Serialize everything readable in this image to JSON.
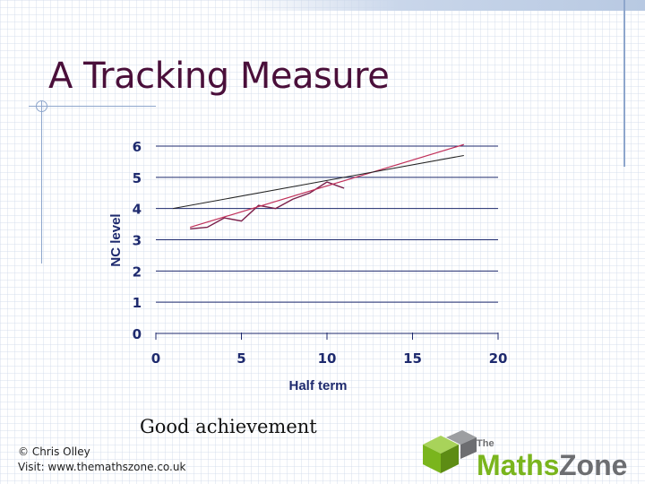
{
  "slide": {
    "title": "A Tracking Measure",
    "caption": "Good achievement",
    "footer_line1": "© Chris Olley",
    "footer_line2": "Visit: www.themathszone.co.uk"
  },
  "logo": {
    "small": "The",
    "word1": "Maths",
    "word2": "Zone",
    "green": "#7ab51d",
    "gray": "#6d6e71",
    "icon": "cube-icon"
  },
  "colors": {
    "title": "#4a0f3a",
    "series_actual": "#7a1f4a",
    "series_target": "#c0305a",
    "series_trend": "#222222",
    "grid": "#1e2a6e",
    "tick_label": "#1e2a6e"
  },
  "chart_data": {
    "type": "line",
    "title": "",
    "xlabel": "Half term",
    "ylabel": "NC level",
    "xlim": [
      0,
      20
    ],
    "ylim": [
      0,
      6
    ],
    "xticks": [
      0,
      5,
      10,
      15,
      20
    ],
    "yticks": [
      0,
      1,
      2,
      3,
      4,
      5,
      6
    ],
    "grid": "horizontal",
    "legend": "none",
    "series": [
      {
        "x": [
          2,
          3,
          4,
          5,
          6,
          7,
          8,
          9,
          10,
          11
        ],
        "y": [
          3.35,
          3.4,
          3.7,
          3.6,
          4.1,
          4.0,
          4.3,
          4.5,
          4.85,
          4.65
        ]
      },
      {
        "x": [
          2,
          18
        ],
        "y": [
          3.4,
          6.05
        ]
      },
      {
        "x": [
          1,
          18
        ],
        "y": [
          4.0,
          5.7
        ]
      }
    ]
  }
}
